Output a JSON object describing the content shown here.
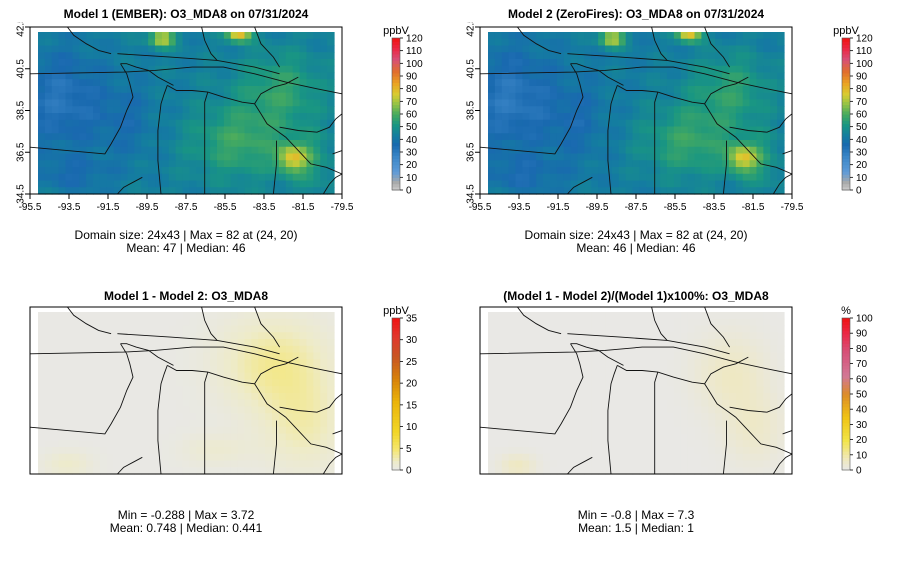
{
  "chart_data": [
    {
      "type": "heatmap",
      "title": "Model 1 (EMBER): O3_MDA8 on 07/31/2024",
      "x_ticks": [
        "-95.5",
        "-93.5",
        "-91.5",
        "-89.5",
        "-87.5",
        "-85.5",
        "-83.5",
        "-81.5",
        "-79.5"
      ],
      "y_ticks": [
        "34.5",
        "36.5",
        "38.5",
        "40.5",
        "42.5"
      ],
      "xlim": [
        -95.5,
        -79.5
      ],
      "ylim": [
        34.5,
        42.5
      ],
      "colorbar": {
        "unit": "ppbV",
        "ticks": [
          "0",
          "10",
          "20",
          "30",
          "40",
          "50",
          "60",
          "70",
          "80",
          "90",
          "100",
          "110",
          "120"
        ],
        "range": [
          0,
          120
        ]
      },
      "stats_line1": "Domain size: 24x43 | Max = 82 at (24, 20)",
      "stats_line2": "Mean: 47 |  Median: 46",
      "field": "ozone",
      "shift": 0
    },
    {
      "type": "heatmap",
      "title": "Model 2 (ZeroFires): O3_MDA8 on 07/31/2024",
      "x_ticks": [
        "-95.5",
        "-93.5",
        "-91.5",
        "-89.5",
        "-87.5",
        "-85.5",
        "-83.5",
        "-81.5",
        "-79.5"
      ],
      "y_ticks": [
        "34.5",
        "36.5",
        "38.5",
        "40.5",
        "42.5"
      ],
      "xlim": [
        -95.5,
        -79.5
      ],
      "ylim": [
        34.5,
        42.5
      ],
      "colorbar": {
        "unit": "ppbV",
        "ticks": [
          "0",
          "10",
          "20",
          "30",
          "40",
          "50",
          "60",
          "70",
          "80",
          "90",
          "100",
          "110",
          "120"
        ],
        "range": [
          0,
          120
        ]
      },
      "stats_line1": "Domain size: 24x43 | Max = 82 at (24, 20)",
      "stats_line2": "Mean: 46 |  Median: 46",
      "field": "ozone",
      "shift": -1
    },
    {
      "type": "heatmap",
      "title": "Model 1 - Model 2: O3_MDA8",
      "x_ticks": [],
      "y_ticks": [],
      "xlim": [
        -95.5,
        -79.5
      ],
      "ylim": [
        34.5,
        42.5
      ],
      "colorbar": {
        "unit": "ppbV",
        "ticks": [
          "0",
          "5",
          "10",
          "15",
          "20",
          "25",
          "30",
          "35"
        ],
        "range": [
          0,
          35
        ]
      },
      "stats_line1": "Min = -0.288 | Max = 3.72",
      "stats_line2": "Mean: 0.748 |  Median: 0.441",
      "field": "diff",
      "shift": 0
    },
    {
      "type": "heatmap",
      "title": "(Model 1 - Model 2)/(Model 1)x100%: O3_MDA8",
      "x_ticks": [],
      "y_ticks": [],
      "xlim": [
        -95.5,
        -79.5
      ],
      "ylim": [
        34.5,
        42.5
      ],
      "colorbar": {
        "unit": "%",
        "ticks": [
          "0",
          "10",
          "20",
          "30",
          "40",
          "50",
          "60",
          "70",
          "80",
          "90",
          "100"
        ],
        "range": [
          0,
          100
        ]
      },
      "stats_line1": "Min = -0.8 | Max = 7.3",
      "stats_line2": "Mean: 1.5 |  Median: 1",
      "field": "pct",
      "shift": 0
    }
  ]
}
